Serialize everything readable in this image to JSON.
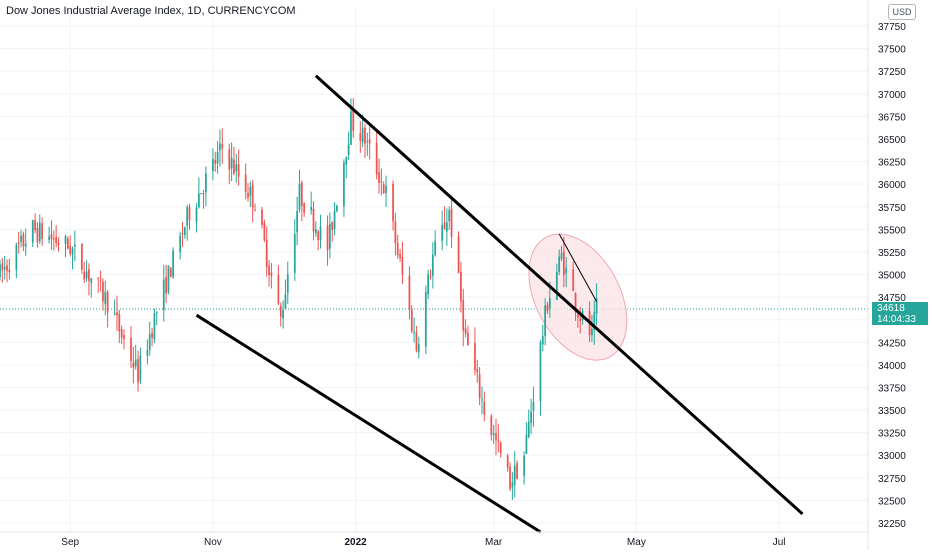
{
  "chart_title": "Dow Jones Industrial Average Index, 1D, CURRENCYCOM",
  "currency": "USD",
  "last_price": "34618",
  "countdown": "14:04:33",
  "colors": {
    "up": "#26a69a",
    "down": "#ef5350",
    "trendline": "#000000",
    "highlight_fill": "#fbe0e4",
    "highlight_stroke": "#f2a7b3",
    "price_line": "#26a69a"
  },
  "chart_data": {
    "type": "candlestick",
    "title": "Dow Jones Industrial Average Index, 1D, CURRENCYCOM",
    "ylim": [
      32150,
      37950
    ],
    "y_ticks": [
      32250,
      32500,
      32750,
      33000,
      33250,
      33500,
      33750,
      34000,
      34250,
      34500,
      34750,
      35000,
      35250,
      35500,
      35750,
      36000,
      36250,
      36500,
      36750,
      37000,
      37250,
      37500,
      37750
    ],
    "x_tick_labels": [
      "Sep",
      "Nov",
      "2022",
      "Mar",
      "May",
      "Jul"
    ],
    "grid": true,
    "x_start": "2021-08-02",
    "x_end": "2022-08-08",
    "price_scale_side": "right",
    "trendlines": [
      {
        "name": "upper",
        "from": [
          "2021-12-15",
          37200
        ],
        "to": [
          "2022-07-11",
          32350
        ]
      },
      {
        "name": "lower",
        "from": [
          "2021-10-25",
          34550
        ],
        "to": [
          "2022-03-21",
          32150
        ]
      },
      {
        "name": "short",
        "from": [
          "2022-03-29",
          35450
        ],
        "to": [
          "2022-04-14",
          34700
        ]
      }
    ],
    "highlight_ellipse": {
      "center": [
        "2022-04-06",
        34750
      ],
      "radius_days": 18,
      "radius_price": 750
    },
    "current_price_line": 34618
  }
}
